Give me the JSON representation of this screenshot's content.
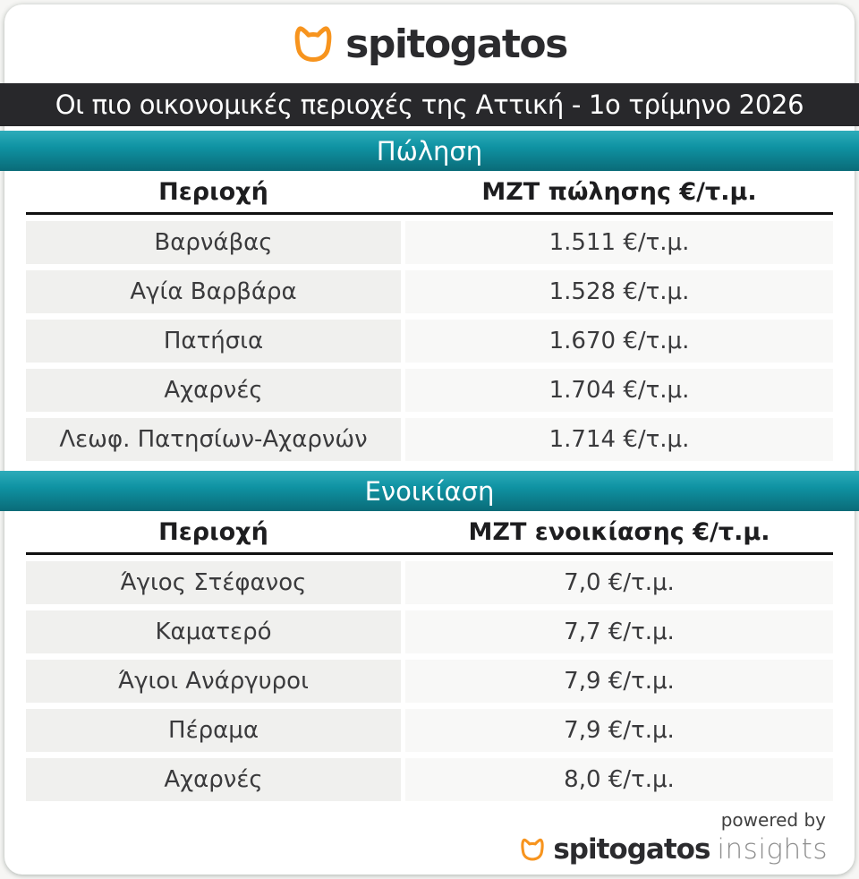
{
  "brand": {
    "name": "spitogatos",
    "cat_icon": "cat-head-outline-icon",
    "orange": "#F7941E",
    "text_color": "#2B2B2E"
  },
  "title_bar": {
    "text": "Οι πιο οικονομικές περιοχές της Αττική - 1ο τρίμηνο 2026",
    "bg": "#28282B",
    "text_color": "#FFFFFF"
  },
  "theme": {
    "teal_top": "#2EACBA",
    "teal_mid": "#0F93A3",
    "teal_bottom": "#0A6B78",
    "row_area_bg": "#F0F0EE",
    "row_value_bg": "#F8F8F7",
    "page_bg": "#F6F6F4",
    "card_bg": "#FFFFFF",
    "header_underline": "#111111"
  },
  "sections": [
    {
      "band_label": "Πώληση",
      "col_area": "Περιοχή",
      "col_value": "ΜΖΤ πώλησης €/τ.μ.",
      "rows": [
        {
          "area": "Βαρνάβας",
          "value": "1.511 €/τ.μ."
        },
        {
          "area": "Αγία Βαρβάρα",
          "value": "1.528 €/τ.μ."
        },
        {
          "area": "Πατήσια",
          "value": "1.670 €/τ.μ."
        },
        {
          "area": "Αχαρνές",
          "value": "1.704 €/τ.μ."
        },
        {
          "area": "Λεωφ. Πατησίων-Αχαρνών",
          "value": "1.714 €/τ.μ."
        }
      ]
    },
    {
      "band_label": "Ενοικίαση",
      "col_area": "Περιοχή",
      "col_value": "ΜΖΤ ενοικίασης €/τ.μ.",
      "rows": [
        {
          "area": "Άγιος Στέφανος",
          "value": "7,0 €/τ.μ."
        },
        {
          "area": "Καματερό",
          "value": "7,7 €/τ.μ."
        },
        {
          "area": "Άγιοι Ανάργυροι",
          "value": "7,9 €/τ.μ."
        },
        {
          "area": "Πέραμα",
          "value": "7,9 €/τ.μ."
        },
        {
          "area": "Αχαρνές",
          "value": "8,0 €/τ.μ."
        }
      ]
    }
  ],
  "footer": {
    "powered_by": "powered by",
    "brand": "spitogatos",
    "suffix": "insights"
  },
  "chart_data": [
    {
      "type": "table",
      "title": "Πώληση",
      "columns": [
        "Περιοχή",
        "ΜΖΤ πώλησης €/τ.μ."
      ],
      "rows": [
        [
          "Βαρνάβας",
          1511
        ],
        [
          "Αγία Βαρβάρα",
          1528
        ],
        [
          "Πατήσια",
          1670
        ],
        [
          "Αχαρνές",
          1704
        ],
        [
          "Λεωφ. Πατησίων-Αχαρνών",
          1714
        ]
      ],
      "unit": "€/τ.μ."
    },
    {
      "type": "table",
      "title": "Ενοικίαση",
      "columns": [
        "Περιοχή",
        "ΜΖΤ ενοικίασης €/τ.μ."
      ],
      "rows": [
        [
          "Άγιος Στέφανος",
          7.0
        ],
        [
          "Καματερό",
          7.7
        ],
        [
          "Άγιοι Ανάργυροι",
          7.9
        ],
        [
          "Πέραμα",
          7.9
        ],
        [
          "Αχαρνές",
          8.0
        ]
      ],
      "unit": "€/τ.μ."
    }
  ]
}
